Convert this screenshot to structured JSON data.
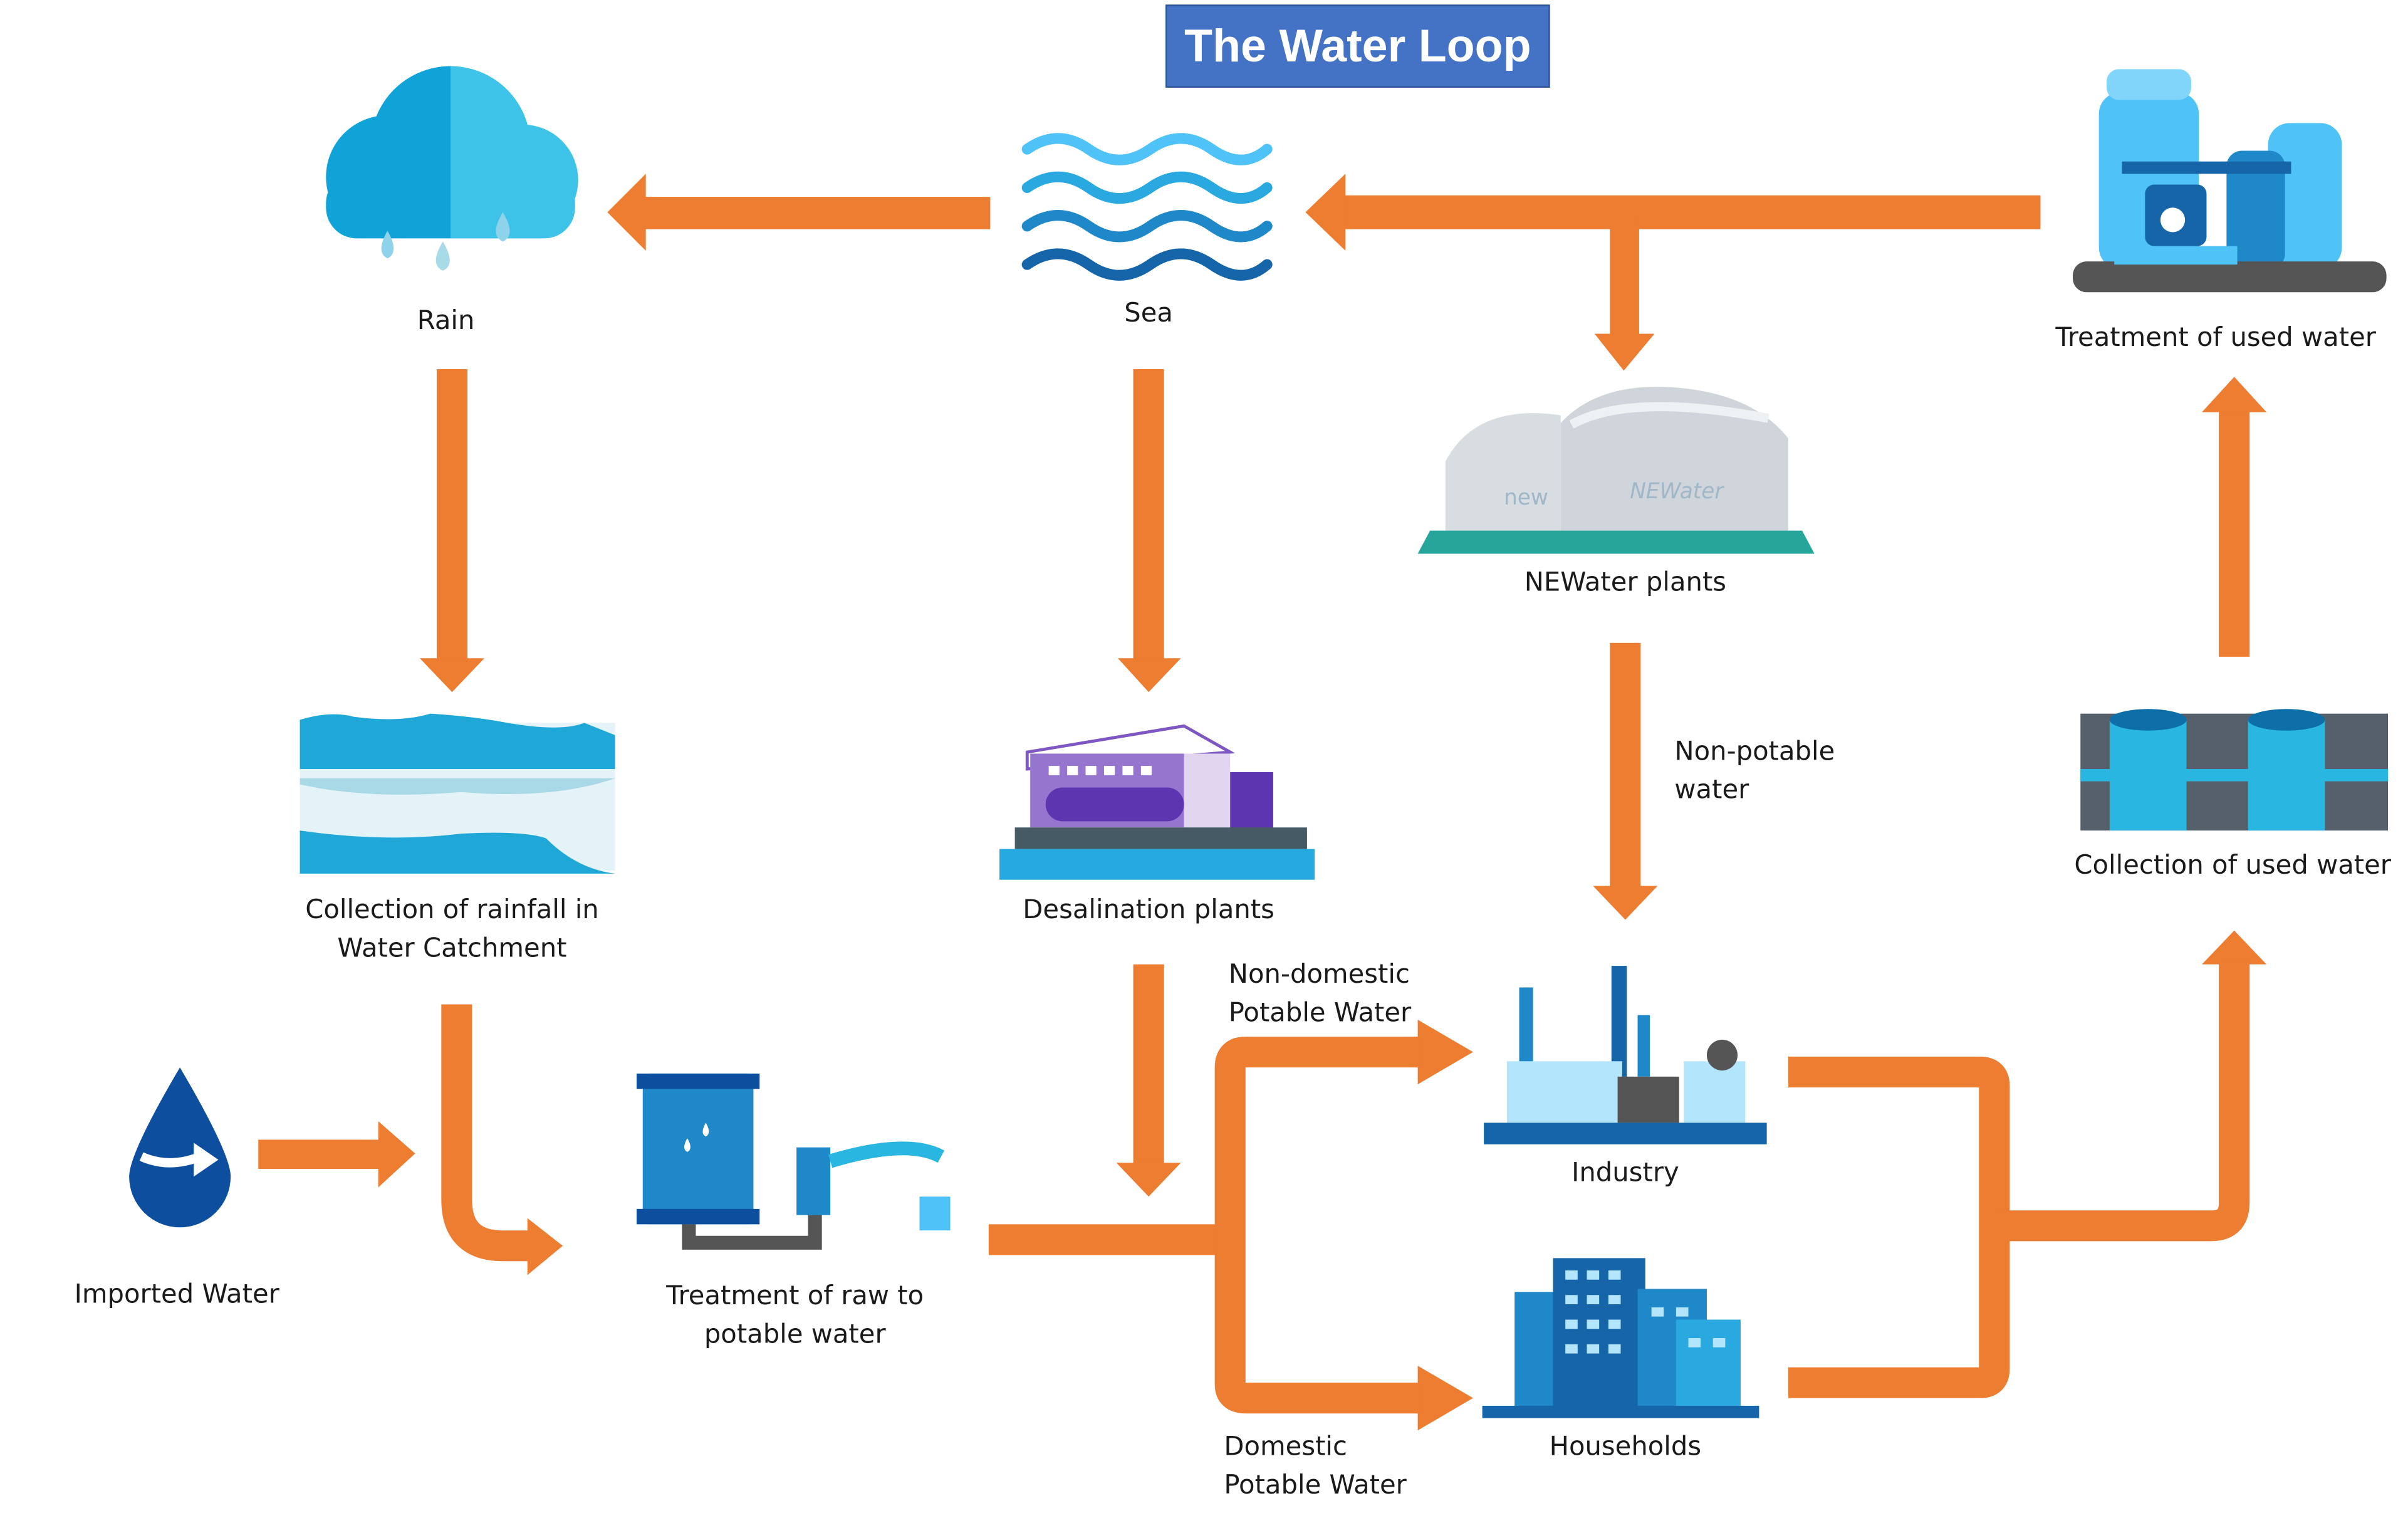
{
  "title": "The Water Loop",
  "colors": {
    "arrow": "#ed7d31",
    "title_bg": "#4472c4",
    "icon_blue": "#1e88c8",
    "icon_cyan": "#29b6e0"
  },
  "nodes": {
    "rain": "Rain",
    "sea": "Sea",
    "treatment_used": "Treatment of used water",
    "newater": "NEWater plants",
    "catchment_line1": "Collection of rainfall in",
    "catchment_line2": "Water Catchment",
    "desalination": "Desalination plants",
    "collection_used": "Collection of used water",
    "imported": "Imported Water",
    "treatment_raw_line1": "Treatment of raw to",
    "treatment_raw_line2": "potable water",
    "industry": "Industry",
    "households": "Households"
  },
  "edge_labels": {
    "non_potable_line1": "Non-potable",
    "non_potable_line2": "water",
    "non_domestic_line1": "Non-domestic",
    "non_domestic_line2": "Potable Water",
    "domestic_line1": "Domestic",
    "domestic_line2": "Potable Water"
  },
  "icon_text": {
    "newater_sign1": "new",
    "newater_sign2": "NEWater"
  }
}
